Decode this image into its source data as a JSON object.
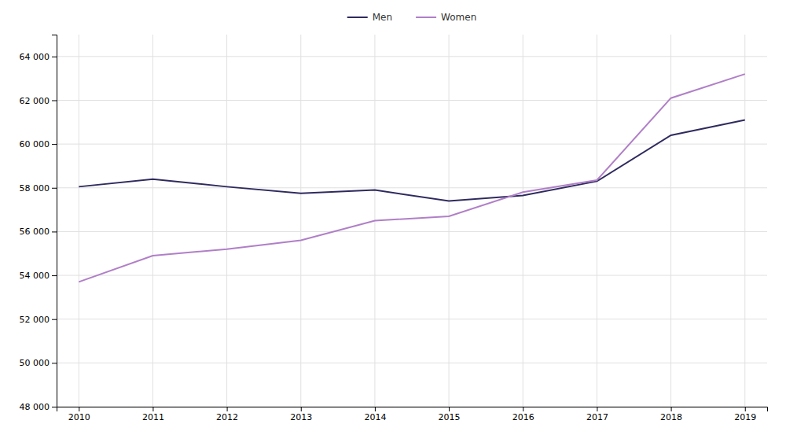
{
  "chart_data": {
    "type": "line",
    "x": [
      2010,
      2011,
      2012,
      2013,
      2014,
      2015,
      2016,
      2017,
      2018,
      2019
    ],
    "series": [
      {
        "name": "Men",
        "color": "#2e2a5e",
        "values": [
          58050,
          58400,
          58050,
          57750,
          57900,
          57400,
          57650,
          58300,
          60400,
          61100
        ]
      },
      {
        "name": "Women",
        "color": "#b07fc7",
        "values": [
          53700,
          54900,
          55200,
          55600,
          56500,
          56700,
          57800,
          58350,
          62100,
          63200
        ]
      }
    ],
    "xlim": [
      2009.7,
      2019.3
    ],
    "xticks": [
      2010,
      2011,
      2012,
      2013,
      2014,
      2015,
      2016,
      2017,
      2018,
      2019
    ],
    "ylim": [
      48000,
      65000
    ],
    "yticks": [
      {
        "value": 48000,
        "label": "48 000"
      },
      {
        "value": 50000,
        "label": "50 000"
      },
      {
        "value": 52000,
        "label": "52 000"
      },
      {
        "value": 54000,
        "label": "54 000"
      },
      {
        "value": 56000,
        "label": "56 000"
      },
      {
        "value": 58000,
        "label": "58 000"
      },
      {
        "value": 60000,
        "label": "60 000"
      },
      {
        "value": 62000,
        "label": "62 000"
      },
      {
        "value": 64000,
        "label": "64 000"
      }
    ],
    "grid": true,
    "legend": "top"
  }
}
